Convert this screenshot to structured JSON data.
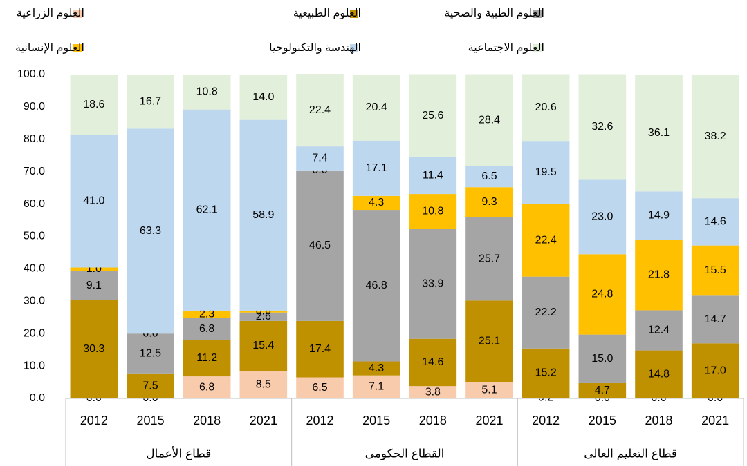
{
  "chart_data": {
    "type": "stacked_bar",
    "categories": [
      "2012",
      "2015",
      "2018",
      "2021",
      "2012",
      "2015",
      "2018",
      "2021",
      "2012",
      "2015",
      "2018",
      "2021"
    ],
    "groups": [
      "قطاع الأعمال",
      "القطاع الحكومى",
      "قطاع التعليم العالى"
    ],
    "ylim": [
      0,
      100
    ],
    "yticks": [
      {
        "value": 0,
        "label": "0.0"
      },
      {
        "value": 10,
        "label": "10.0"
      },
      {
        "value": 20,
        "label": "20.0"
      },
      {
        "value": 30,
        "label": "30.0"
      },
      {
        "value": 40,
        "label": "40.0"
      },
      {
        "value": 50,
        "label": "50.0"
      },
      {
        "value": 60,
        "label": "60.0"
      },
      {
        "value": 70,
        "label": "70.0"
      },
      {
        "value": 80,
        "label": "80.0"
      },
      {
        "value": 90,
        "label": "90.0"
      },
      {
        "value": 100,
        "label": "100.0"
      }
    ],
    "series": [
      {
        "name": "العلوم الزراعية",
        "color": "#f8cbad",
        "values": [
          0.0,
          0.0,
          6.8,
          8.5,
          6.5,
          7.1,
          3.8,
          5.1,
          0.2,
          0.0,
          0.0,
          0.0
        ],
        "value_labels": [
          "0.0",
          "0.0",
          "6.8",
          "8.5",
          "6.5",
          "7.1",
          "3.8",
          "5.1",
          "0.2",
          "0.0",
          "0.0",
          "0.0"
        ]
      },
      {
        "name": "العلوم الطبيعية",
        "color": "#bf9000",
        "values": [
          30.3,
          7.5,
          11.2,
          15.4,
          17.4,
          4.3,
          14.6,
          25.1,
          15.2,
          4.7,
          14.8,
          17.0
        ],
        "value_labels": [
          "30.3",
          "7.5",
          "11.2",
          "15.4",
          "17.4",
          "4.3",
          "14.6",
          "25.1",
          "15.2",
          "4.7",
          "14.8",
          "17.0"
        ]
      },
      {
        "name": "العلوم الطبية والصحية",
        "color": "#a5a5a5",
        "values": [
          9.1,
          12.5,
          6.8,
          2.6,
          46.5,
          46.8,
          33.9,
          25.7,
          22.2,
          15.0,
          12.4,
          14.7
        ],
        "value_labels": [
          "9.1",
          "12.5",
          "6.8",
          "2.6",
          "46.5",
          "46.8",
          "33.9",
          "25.7",
          "22.2",
          "15.0",
          "12.4",
          "14.7"
        ]
      },
      {
        "name": "العلوم الإنسانية",
        "color": "#ffc000",
        "values": [
          1.0,
          0.0,
          2.3,
          0.6,
          0.0,
          4.3,
          10.8,
          9.3,
          22.4,
          24.8,
          21.8,
          15.5
        ],
        "value_labels": [
          "1.0",
          "0.0",
          "2.3",
          "0.6",
          "0.0",
          "4.3",
          "10.8",
          "9.3",
          "22.4",
          "24.8",
          "21.8",
          "15.5"
        ]
      },
      {
        "name": "الهندسة والتكنولوجيا",
        "color": "#bdd7ee",
        "values": [
          41.0,
          63.3,
          62.1,
          58.9,
          7.4,
          17.1,
          11.4,
          6.5,
          19.5,
          23.0,
          14.9,
          14.6
        ],
        "value_labels": [
          "41.0",
          "63.3",
          "62.1",
          "58.9",
          "7.4",
          "17.1",
          "11.4",
          "6.5",
          "19.5",
          "23.0",
          "14.9",
          "14.6"
        ]
      },
      {
        "name": "العلوم الاجتماعية",
        "color": "#e2efda",
        "values": [
          18.6,
          16.7,
          10.8,
          14.0,
          22.4,
          20.4,
          25.6,
          28.4,
          20.6,
          32.6,
          36.1,
          38.2
        ],
        "value_labels": [
          "18.6",
          "16.7",
          "10.8",
          "14.0",
          "22.4",
          "20.4",
          "25.6",
          "28.4",
          "20.6",
          "32.6",
          "36.1",
          "38.2"
        ]
      }
    ]
  }
}
